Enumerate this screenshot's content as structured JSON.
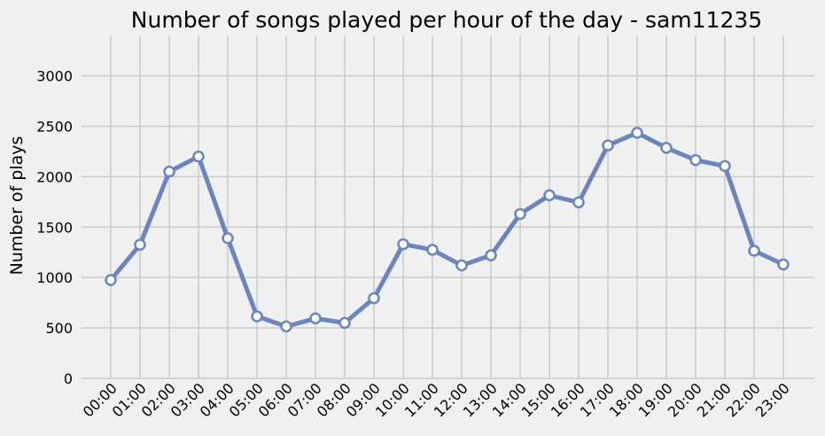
{
  "chart_data": {
    "type": "line",
    "title": "Number of songs played per hour of the day - sam11235",
    "xlabel": "",
    "ylabel": "Number of plays",
    "categories": [
      "00:00",
      "01:00",
      "02:00",
      "03:00",
      "04:00",
      "05:00",
      "06:00",
      "07:00",
      "08:00",
      "09:00",
      "10:00",
      "11:00",
      "12:00",
      "13:00",
      "14:00",
      "15:00",
      "16:00",
      "17:00",
      "18:00",
      "19:00",
      "20:00",
      "21:00",
      "22:00",
      "23:00"
    ],
    "series": [
      {
        "values": [
          975,
          1325,
          2050,
          2200,
          1390,
          615,
          515,
          595,
          550,
          795,
          1330,
          1275,
          1120,
          1220,
          1630,
          1815,
          1745,
          2310,
          2435,
          2285,
          2165,
          2105,
          1265,
          1130
        ]
      }
    ],
    "ylim": [
      0,
      3400
    ],
    "yticks": [
      0,
      500,
      1000,
      1500,
      2000,
      2500,
      3000
    ],
    "grid": true,
    "colors": {
      "line": "#6a86c1",
      "marker_fill": "#ffffff",
      "background": "#f0f0f0",
      "grid": "#cbcbcb"
    }
  }
}
